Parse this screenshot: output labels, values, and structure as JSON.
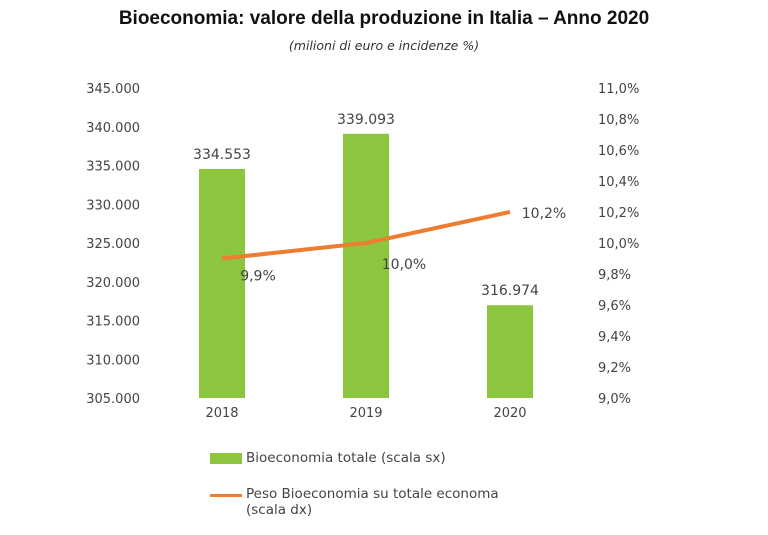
{
  "chart_data": {
    "type": "bar+line",
    "title": "Bioeconomia: valore della produzione in Italia – Anno 2020",
    "subtitle": "(milioni di euro e incidenze %)",
    "categories": [
      "2018",
      "2019",
      "2020"
    ],
    "series": [
      {
        "name": "Bioeconomia totale (scala sx)",
        "type": "bar",
        "axis": "left",
        "values": [
          334553,
          339093,
          316974
        ],
        "labels": [
          "334.553",
          "339.093",
          "316.974"
        ],
        "color": "#8cc63f"
      },
      {
        "name": "Peso Bioeconomia su totale economa (scala dx)",
        "type": "line",
        "axis": "right",
        "values": [
          9.9,
          10.0,
          10.2
        ],
        "labels": [
          "9,9%",
          "10,0%",
          "10,2%"
        ],
        "color": "#ed7d31"
      }
    ],
    "left_axis": {
      "range": [
        305000,
        345000
      ],
      "ticks": [
        "305.000",
        "310.000",
        "315.000",
        "320.000",
        "325.000",
        "330.000",
        "335.000",
        "340.000",
        "345.000"
      ]
    },
    "right_axis": {
      "range": [
        9.0,
        11.0
      ],
      "ticks": [
        "9,0%",
        "9,2%",
        "9,4%",
        "9,6%",
        "9,8%",
        "10,0%",
        "10,2%",
        "10,4%",
        "10,6%",
        "10,8%",
        "11,0%"
      ]
    },
    "grid": false,
    "legend_position": "bottom",
    "legend": [
      "Bioeconomia totale (scala sx)",
      "Peso Bioeconomia su totale economa",
      "(scala dx)"
    ]
  }
}
